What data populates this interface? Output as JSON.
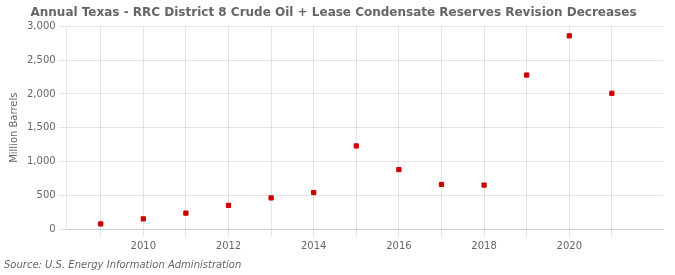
{
  "chart_data": {
    "type": "scatter",
    "title": "Annual Texas - RRC District 8 Crude Oil + Lease Condensate Reserves Revision Decreases",
    "ylabel": "Million Barrels",
    "annotation": "Source: U.S. Energy Information Administration",
    "x": [
      2009,
      2010,
      2011,
      2012,
      2013,
      2014,
      2015,
      2016,
      2017,
      2018,
      2019,
      2020,
      2021
    ],
    "values": [
      75,
      150,
      235,
      350,
      460,
      540,
      1230,
      880,
      660,
      650,
      2280,
      2860,
      2010
    ],
    "color": "#cc0000",
    "marker": "square",
    "xlim": [
      2008.2,
      2022.2
    ],
    "xticks": [
      {
        "value": 2009,
        "label": ""
      },
      2010,
      {
        "value": 2011,
        "label": ""
      },
      2012,
      {
        "value": 2013,
        "label": ""
      },
      2014,
      {
        "value": 2015,
        "label": ""
      },
      2016,
      {
        "value": 2017,
        "label": ""
      },
      2018,
      {
        "value": 2019,
        "label": ""
      },
      2020,
      {
        "value": 2021,
        "label": ""
      }
    ],
    "ylim": [
      0,
      3000
    ],
    "yticks": [
      0,
      500,
      {
        "value": 1000,
        "label": "1,000"
      },
      {
        "value": 1500,
        "label": "1,500"
      },
      {
        "value": 2000,
        "label": "2,000"
      },
      {
        "value": 2500,
        "label": "2,500"
      },
      {
        "value": 3000,
        "label": "3,000"
      }
    ],
    "grid": true
  }
}
